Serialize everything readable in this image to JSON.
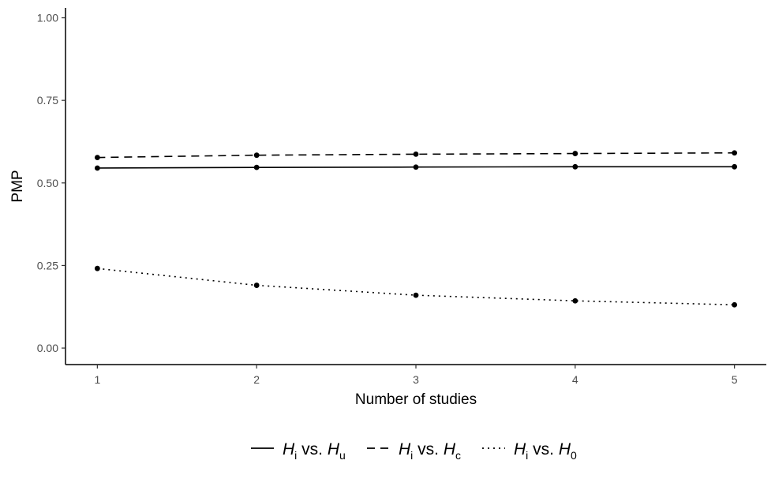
{
  "chart_data": {
    "type": "line",
    "xlabel": "Number of studies",
    "ylabel": "PMP",
    "x": [
      1,
      2,
      3,
      4,
      5
    ],
    "x_ticks": [
      "1",
      "2",
      "3",
      "4",
      "5"
    ],
    "ylim": [
      -0.05,
      1.03
    ],
    "y_ticks": [
      0.0,
      0.25,
      0.5,
      0.75,
      1.0
    ],
    "y_tick_labels": [
      "0.00",
      "0.25",
      "0.50",
      "0.75",
      "1.00"
    ],
    "grid": false,
    "legend_position": "bottom",
    "series": [
      {
        "name": "H_i vs. H_u",
        "legend": {
          "h1": "H",
          "s1": "i",
          "mid": " vs. ",
          "h2": "H",
          "s2": "u"
        },
        "linestyle": "solid",
        "values": [
          0.545,
          0.547,
          0.548,
          0.549,
          0.549
        ]
      },
      {
        "name": "H_i vs. H_c",
        "legend": {
          "h1": "H",
          "s1": "i",
          "mid": " vs. ",
          "h2": "H",
          "s2": "c"
        },
        "linestyle": "dashed",
        "values": [
          0.577,
          0.584,
          0.587,
          0.589,
          0.591
        ]
      },
      {
        "name": "H_i vs. H_0",
        "legend": {
          "h1": "H",
          "s1": "i",
          "mid": " vs. ",
          "h2": "H",
          "s2": "0"
        },
        "linestyle": "dotted",
        "values": [
          0.241,
          0.19,
          0.16,
          0.143,
          0.131
        ]
      }
    ],
    "colors": {
      "line": "#000000",
      "axis": "#000000",
      "tick_text": "#4d4d4d"
    }
  }
}
